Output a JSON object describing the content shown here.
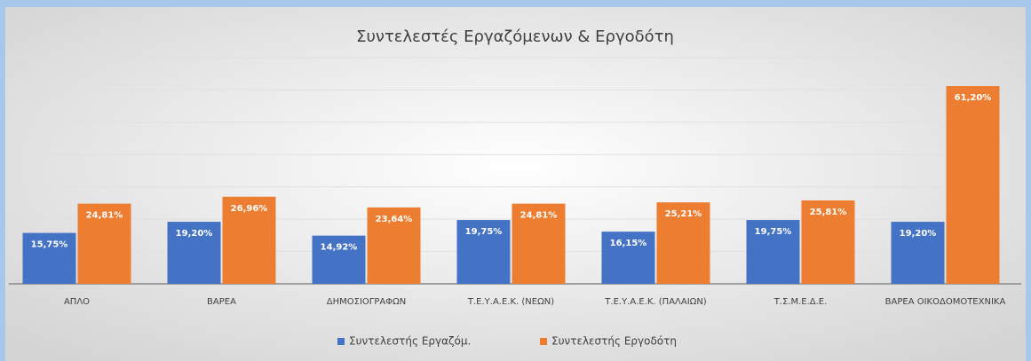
{
  "chart_data": {
    "type": "bar",
    "title": "Συντελεστές Εργαζόμενων & Εργοδότη",
    "categories": [
      "ΑΠΛΟ",
      "ΒΑΡΕΑ",
      "ΔΗΜΟΣΙΟΓΡΑΦΩΝ",
      "Τ.Ε.Υ.Α.Ε.Κ. (ΝΕΩΝ)",
      "Τ.Ε.Υ.Α.Ε.Κ. (ΠΑΛΑΙΩΝ)",
      "Τ.Σ.Μ.Ε.Δ.Ε.",
      "ΒΑΡΕΑ ΟΙΚΟΔΟΜΟΤΕΧΝΙΚΑ"
    ],
    "series": [
      {
        "name": "Συντελεστής Εργαζόμ.",
        "color": "#4472c4",
        "values": [
          15.75,
          19.2,
          14.92,
          19.75,
          16.15,
          19.75,
          19.2
        ],
        "value_labels": [
          "15,75%",
          "19,20%",
          "14,92%",
          "19,75%",
          "16,15%",
          "19,75%",
          "19,20%"
        ]
      },
      {
        "name": "Συντελεστής Εργοδότη",
        "color": "#ed7d31",
        "values": [
          24.81,
          26.96,
          23.64,
          24.81,
          25.21,
          25.81,
          61.2
        ],
        "value_labels": [
          "24,81%",
          "26,96%",
          "23,64%",
          "24,81%",
          "25,21%",
          "25,81%",
          "61,20%"
        ]
      }
    ],
    "ylim": [
      0,
      70
    ],
    "yticks": [
      0,
      10,
      20,
      30,
      40,
      50,
      60,
      70
    ],
    "grid": true,
    "legend": "bottom"
  }
}
